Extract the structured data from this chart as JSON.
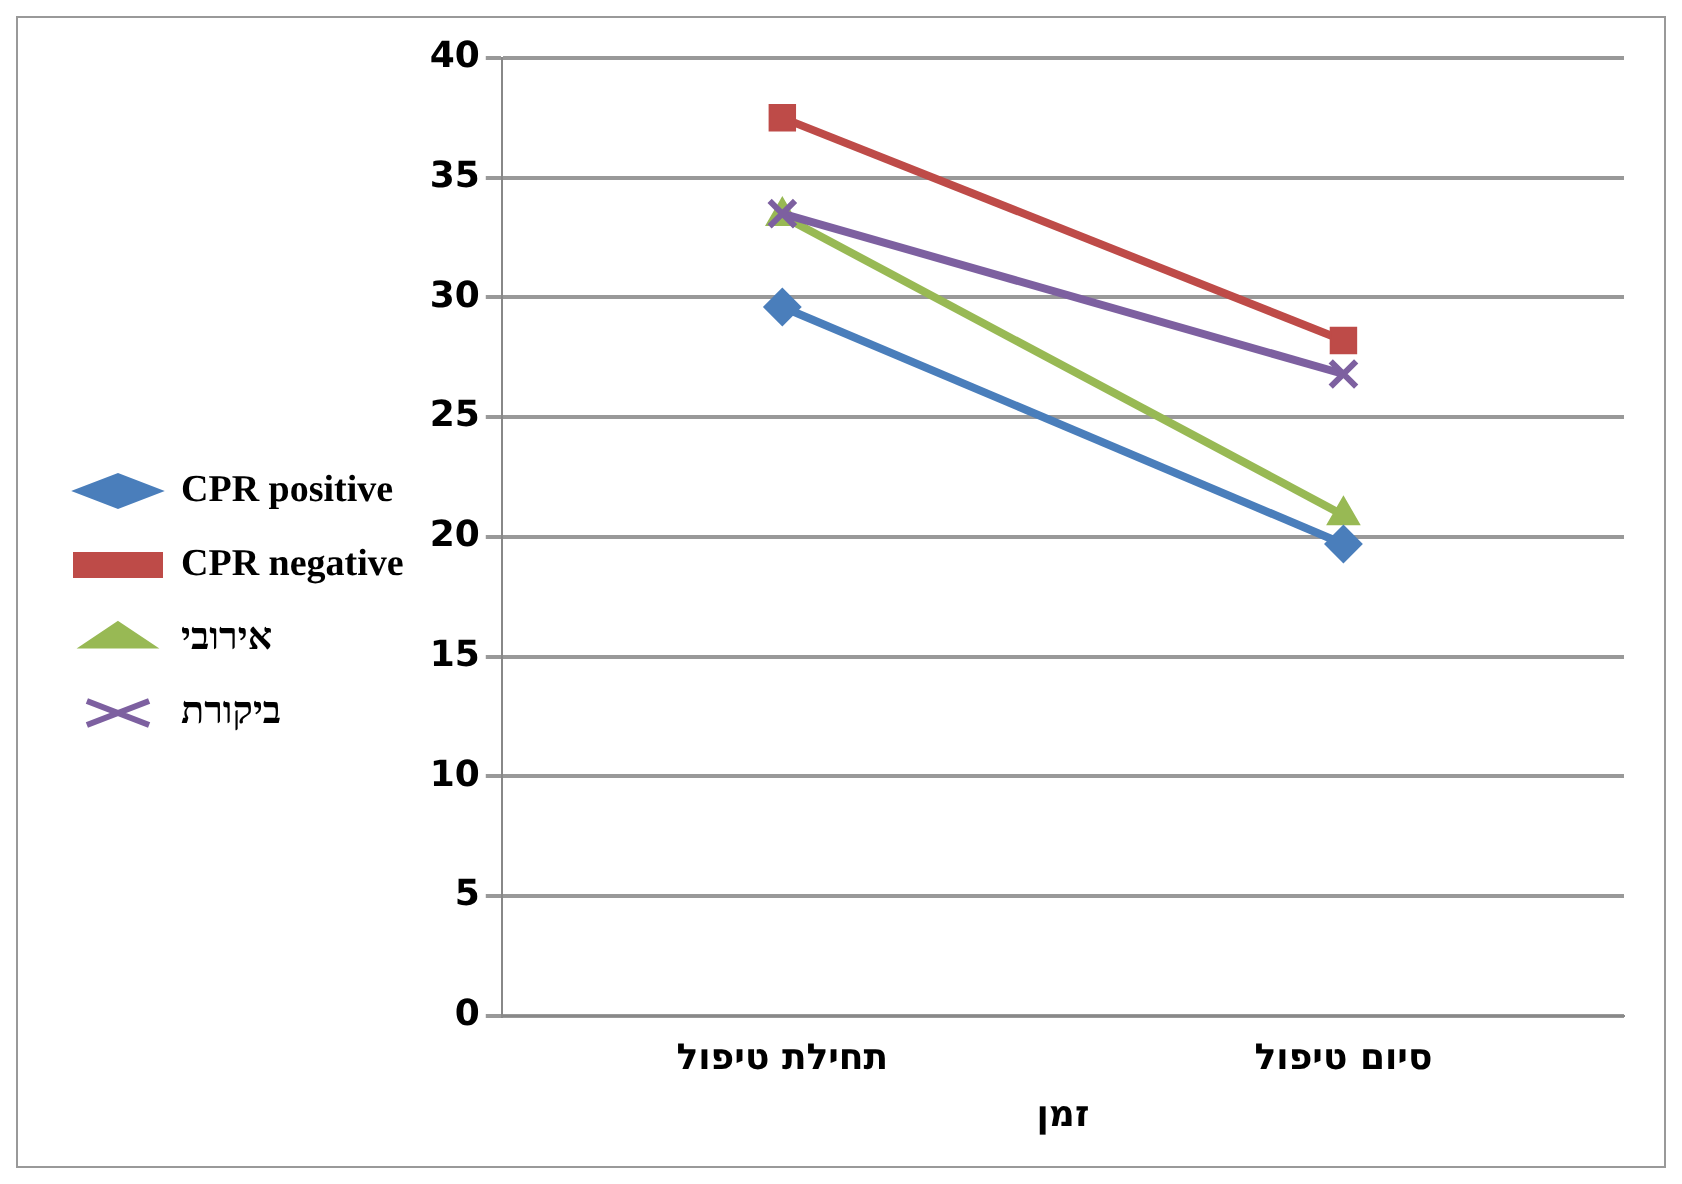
{
  "chart_data": {
    "type": "line",
    "xlabel": "זמן",
    "categories": [
      "תחילת טיפול",
      "סיום טיפול"
    ],
    "series": [
      {
        "name": "CPR positive",
        "color": "#4a7ebb",
        "marker": "diamond",
        "values": [
          29.6,
          19.7
        ]
      },
      {
        "name": "CPR negative",
        "color": "#be4b48",
        "marker": "square",
        "values": [
          37.5,
          28.2
        ]
      },
      {
        "name": "אירובי",
        "color": "#98b954",
        "marker": "triangle",
        "values": [
          33.4,
          20.9
        ]
      },
      {
        "name": "ביקורת",
        "color": "#7d60a0",
        "marker": "cross",
        "values": [
          33.5,
          26.8
        ]
      }
    ],
    "ylim": [
      0,
      40
    ],
    "yticks": [
      0,
      5,
      10,
      15,
      20,
      25,
      30,
      35,
      40
    ],
    "grid": "y",
    "legend": "left"
  }
}
